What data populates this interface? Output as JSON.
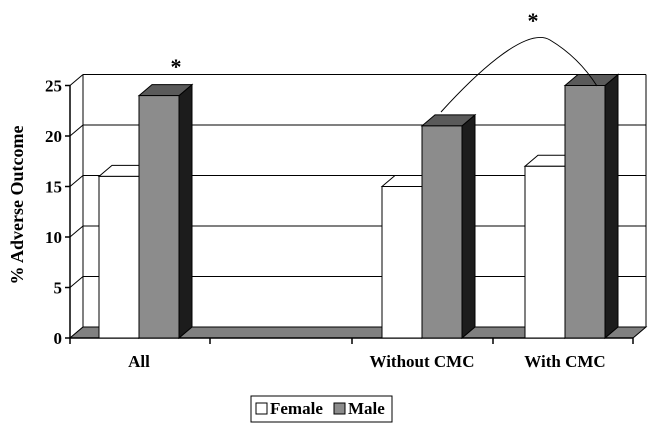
{
  "chart_data": {
    "type": "bar",
    "categories": [
      "All",
      "",
      "Without CMC",
      "With CMC"
    ],
    "series": [
      {
        "name": "Female",
        "values": [
          16,
          null,
          15,
          17
        ]
      },
      {
        "name": "Male",
        "values": [
          24,
          null,
          21,
          25
        ]
      }
    ],
    "ylabel": "% Adverse Outcome",
    "xlabel": "",
    "ylim": [
      0,
      25
    ],
    "yticks": [
      "0",
      "5",
      "10",
      "15",
      "20",
      "25"
    ],
    "grid": true,
    "legend_position": "bottom",
    "annotations": [
      {
        "text": "*",
        "target": "All"
      },
      {
        "text": "*",
        "target": "Without CMC vs With CMC"
      }
    ],
    "colors": {
      "female_front": "#ffffff",
      "female_top": "#ffffff",
      "female_side": "#d9d9d9",
      "male_front": "#8c8c8c",
      "male_top": "#5a5a5a",
      "male_side": "#1c1c1c",
      "floor": "#808080"
    }
  }
}
